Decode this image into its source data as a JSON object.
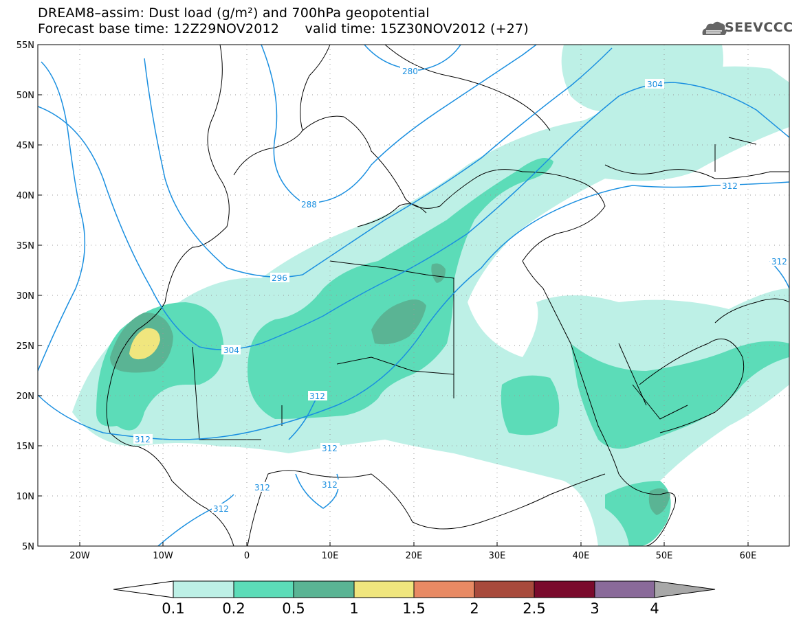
{
  "header": {
    "title_line1": "DREAM8–assim: Dust load (g/m²) and 700hPa geopotential",
    "title_line2": "Forecast base time: 12Z29NOV2012      valid time: 15Z30NOV2012 (+27)",
    "logo_text": "SEEVCCC"
  },
  "map": {
    "lat_labels": [
      "55N",
      "50N",
      "45N",
      "40N",
      "35N",
      "30N",
      "25N",
      "20N",
      "15N",
      "10N",
      "5N"
    ],
    "lon_labels": [
      "20W",
      "10W",
      "0",
      "10E",
      "20E",
      "30E",
      "40E",
      "50E",
      "60E"
    ],
    "contour_labels": [
      "280",
      "288",
      "296",
      "304",
      "304",
      "312",
      "312",
      "312",
      "312",
      "312",
      "312",
      "312",
      "312"
    ],
    "colors": {
      "dust_0_1": "#bdf0e6",
      "dust_0_2": "#5cdcb8",
      "dust_0_5": "#5ab494",
      "dust_1": "#f0e67e",
      "contour": "#1a8fe0"
    }
  },
  "colorbar": {
    "ticks": [
      "0.1",
      "0.2",
      "0.5",
      "1",
      "1.5",
      "2",
      "2.5",
      "3",
      "4"
    ],
    "colors": [
      "#bdf0e6",
      "#5cdcb8",
      "#5ab494",
      "#f0e67e",
      "#e88a64",
      "#a84a3c",
      "#7a0a2c",
      "#8a6a9a"
    ],
    "under_color": "#ffffff",
    "over_color": "#a8a8a8"
  }
}
